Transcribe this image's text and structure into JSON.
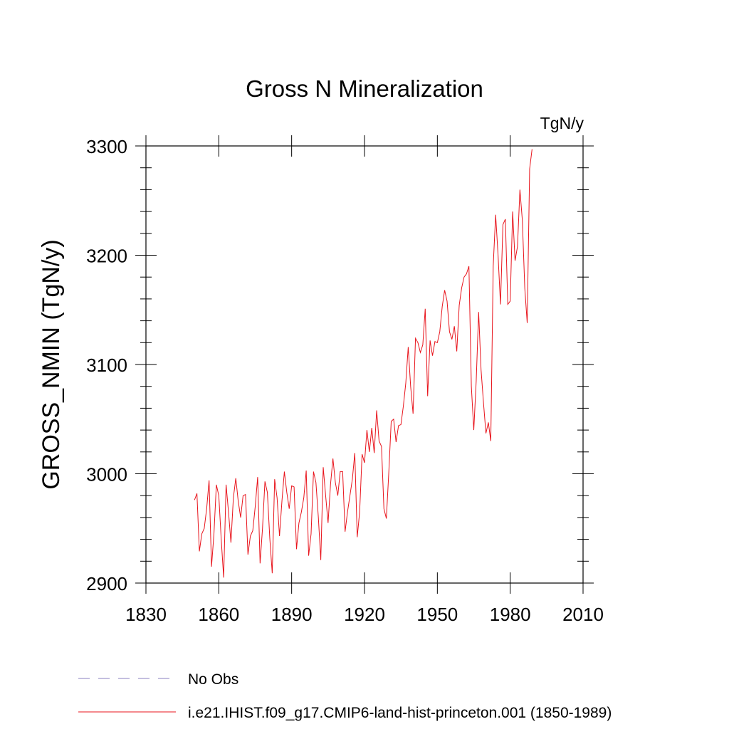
{
  "chart_data": {
    "type": "line",
    "title": "Gross N Mineralization",
    "units": "TgN/y",
    "ylabel": "GROSS_NMIN  (TgN/y)",
    "xlabel": "",
    "xlim": [
      1830,
      2010
    ],
    "ylim": [
      2900,
      3300
    ],
    "x_ticks": [
      1830,
      1860,
      1890,
      1920,
      1950,
      1980,
      2010
    ],
    "y_ticks": [
      2900,
      3000,
      3100,
      3200,
      3300
    ],
    "grid": false,
    "legend_position": "bottom",
    "series": [
      {
        "name": "No Obs",
        "color": "#8a7fc0",
        "style": "dashed",
        "x": [],
        "values": []
      },
      {
        "name": "i.e21.IHIST.f09_g17.CMIP6-land-hist-princeton.001 (1850-1989)",
        "color": "#e8141c",
        "style": "solid",
        "x": [
          1850,
          1851,
          1852,
          1853,
          1854,
          1855,
          1856,
          1857,
          1858,
          1859,
          1860,
          1861,
          1862,
          1863,
          1864,
          1865,
          1866,
          1867,
          1868,
          1869,
          1870,
          1871,
          1872,
          1873,
          1874,
          1875,
          1876,
          1877,
          1878,
          1879,
          1880,
          1881,
          1882,
          1883,
          1884,
          1885,
          1886,
          1887,
          1888,
          1889,
          1890,
          1891,
          1892,
          1893,
          1894,
          1895,
          1896,
          1897,
          1898,
          1899,
          1900,
          1901,
          1902,
          1903,
          1904,
          1905,
          1906,
          1907,
          1908,
          1909,
          1910,
          1911,
          1912,
          1913,
          1914,
          1915,
          1916,
          1917,
          1918,
          1919,
          1920,
          1921,
          1922,
          1923,
          1924,
          1925,
          1926,
          1927,
          1928,
          1929,
          1930,
          1931,
          1932,
          1933,
          1934,
          1935,
          1936,
          1937,
          1938,
          1939,
          1940,
          1941,
          1942,
          1943,
          1944,
          1945,
          1946,
          1947,
          1948,
          1949,
          1950,
          1951,
          1952,
          1953,
          1954,
          1955,
          1956,
          1957,
          1958,
          1959,
          1960,
          1961,
          1962,
          1963,
          1964,
          1965,
          1966,
          1967,
          1968,
          1969,
          1970,
          1971,
          1972,
          1973,
          1974,
          1975,
          1976,
          1977,
          1978,
          1979,
          1980,
          1981,
          1982,
          1983,
          1984,
          1985,
          1986,
          1987,
          1988,
          1989
        ],
        "values": [
          2976,
          2982,
          2929,
          2945,
          2950,
          2968,
          2994,
          2915,
          2945,
          2990,
          2980,
          2940,
          2905,
          2990,
          2965,
          2937,
          2978,
          2996,
          2975,
          2960,
          2980,
          2981,
          2926,
          2943,
          2948,
          2970,
          2997,
          2918,
          2950,
          2993,
          2983,
          2941,
          2909,
          2995,
          2978,
          2943,
          2975,
          3002,
          2983,
          2968,
          2989,
          2988,
          2931,
          2955,
          2965,
          2978,
          3003,
          2925,
          2945,
          3002,
          2992,
          2960,
          2921,
          3006,
          2980,
          2955,
          2990,
          3014,
          2992,
          2980,
          3002,
          3002,
          2947,
          2965,
          2980,
          2995,
          3019,
          2942,
          2965,
          3018,
          3010,
          3040,
          3020,
          3042,
          3019,
          3058,
          3030,
          3025,
          2968,
          2959,
          3001,
          3048,
          3050,
          3029,
          3044,
          3045,
          3062,
          3083,
          3116,
          3080,
          3055,
          3124,
          3120,
          3111,
          3118,
          3151,
          3071,
          3122,
          3108,
          3121,
          3120,
          3130,
          3153,
          3168,
          3158,
          3130,
          3123,
          3135,
          3112,
          3154,
          3170,
          3180,
          3183,
          3190,
          3080,
          3040,
          3085,
          3148,
          3095,
          3065,
          3037,
          3047,
          3030,
          3190,
          3237,
          3200,
          3155,
          3228,
          3233,
          3155,
          3158,
          3240,
          3195,
          3208,
          3260,
          3232,
          3170,
          3138,
          3279,
          3297
        ]
      }
    ]
  }
}
